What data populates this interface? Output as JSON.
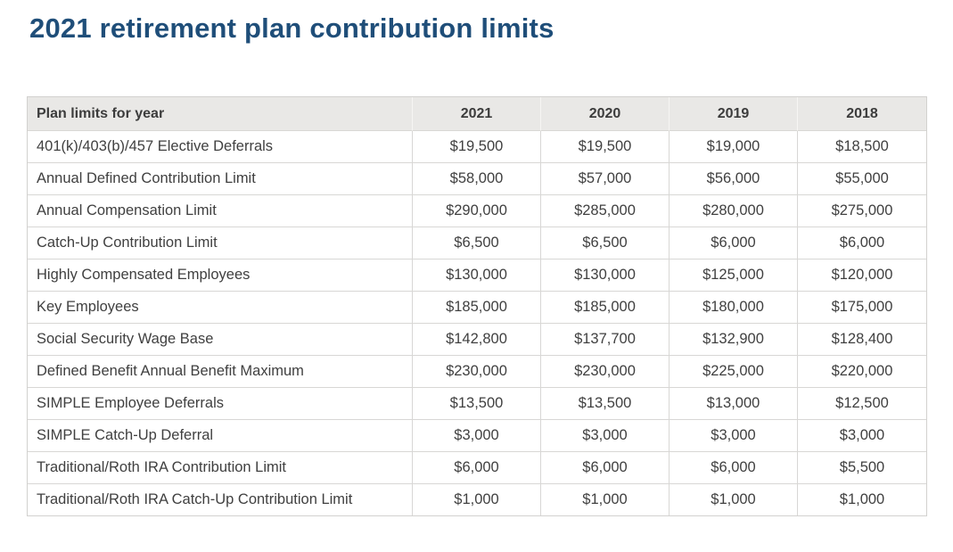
{
  "page": {
    "title": "2021 retirement plan contribution limits"
  },
  "colors": {
    "title_text": "#1f4e79",
    "header_bg": "#e9e8e6",
    "header_text": "#3c3c3c",
    "body_text": "#404040",
    "border": "#d8d7d5"
  },
  "table": {
    "columns": [
      "Plan limits for year",
      "2021",
      "2020",
      "2019",
      "2018"
    ],
    "rows": [
      {
        "label": "401(k)/403(b)/457 Elective Deferrals",
        "values": [
          "$19,500",
          "$19,500",
          "$19,000",
          "$18,500"
        ]
      },
      {
        "label": "Annual Defined Contribution Limit",
        "values": [
          "$58,000",
          "$57,000",
          "$56,000",
          "$55,000"
        ]
      },
      {
        "label": "Annual Compensation Limit",
        "values": [
          "$290,000",
          "$285,000",
          "$280,000",
          "$275,000"
        ]
      },
      {
        "label": "Catch-Up Contribution Limit",
        "values": [
          "$6,500",
          "$6,500",
          "$6,000",
          "$6,000"
        ]
      },
      {
        "label": "Highly Compensated Employees",
        "values": [
          "$130,000",
          "$130,000",
          "$125,000",
          "$120,000"
        ]
      },
      {
        "label": "Key Employees",
        "values": [
          "$185,000",
          "$185,000",
          "$180,000",
          "$175,000"
        ]
      },
      {
        "label": "Social Security Wage Base",
        "values": [
          "$142,800",
          "$137,700",
          "$132,900",
          "$128,400"
        ]
      },
      {
        "label": "Defined Benefit Annual Benefit Maximum",
        "values": [
          "$230,000",
          "$230,000",
          "$225,000",
          "$220,000"
        ]
      },
      {
        "label": "SIMPLE Employee Deferrals",
        "values": [
          "$13,500",
          "$13,500",
          "$13,000",
          "$12,500"
        ]
      },
      {
        "label": "SIMPLE Catch-Up Deferral",
        "values": [
          "$3,000",
          "$3,000",
          "$3,000",
          "$3,000"
        ]
      },
      {
        "label": "Traditional/Roth IRA Contribution Limit",
        "values": [
          "$6,000",
          "$6,000",
          "$6,000",
          "$5,500"
        ]
      },
      {
        "label": "Traditional/Roth IRA Catch-Up Contribution Limit",
        "values": [
          "$1,000",
          "$1,000",
          "$1,000",
          "$1,000"
        ]
      }
    ]
  }
}
